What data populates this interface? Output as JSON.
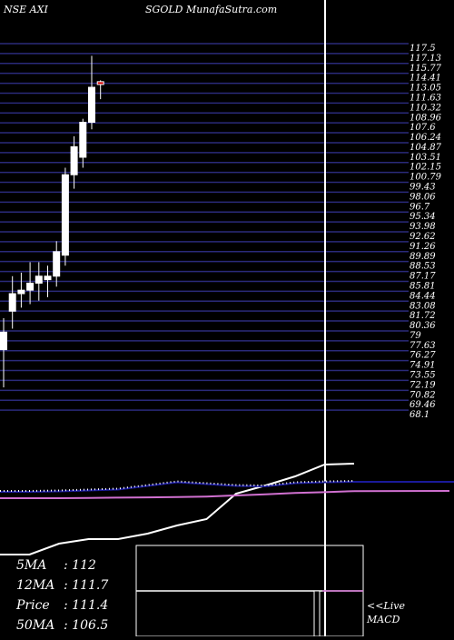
{
  "header": {
    "symbol_label": "NSE AXI",
    "source_label": "SGOLD MunafaSutra.com"
  },
  "colors": {
    "background": "#000000",
    "grid": "#2a2a7a",
    "candle_up": "#ffffff",
    "candle_down": "#d40000",
    "macd_line": "#ffffff",
    "signal_line": "#1a1a9a",
    "ma_line": "#d070d0",
    "text": "#ffffff"
  },
  "chart_data": [
    {
      "type": "candlestick",
      "title": "",
      "ylim": [
        63.7,
        117.5
      ],
      "y_tick_labels": [
        "117.5",
        "117.13",
        "115.77",
        "114.41",
        "113.05",
        "111.63",
        "110.32",
        "108.96",
        "107.6",
        "106.24",
        "104.87",
        "103.51",
        "102.15",
        "100.79",
        "99.43",
        "98.06",
        "96.7",
        "95.34",
        "93.98",
        "92.62",
        "91.26",
        "89.89",
        "88.53",
        "87.17",
        "85.81",
        "84.44",
        "83.08",
        "81.72",
        "80.36",
        "79",
        "77.63",
        "76.27",
        "74.91",
        "73.55",
        "72.19",
        "70.82",
        "69.46",
        "68.1"
      ],
      "candles": [
        {
          "open": 73.5,
          "high": 78.0,
          "low": 68.1,
          "close": 76.0
        },
        {
          "open": 79.0,
          "high": 84.0,
          "low": 76.5,
          "close": 81.5
        },
        {
          "open": 81.5,
          "high": 84.5,
          "low": 79.5,
          "close": 82.0
        },
        {
          "open": 82.0,
          "high": 86.0,
          "low": 80.0,
          "close": 83.0
        },
        {
          "open": 83.0,
          "high": 86.0,
          "low": 80.5,
          "close": 84.0
        },
        {
          "open": 83.5,
          "high": 85.5,
          "low": 81.0,
          "close": 84.0
        },
        {
          "open": 84.0,
          "high": 89.0,
          "low": 82.5,
          "close": 87.5
        },
        {
          "open": 87.0,
          "high": 99.5,
          "low": 85.5,
          "close": 98.5
        },
        {
          "open": 98.5,
          "high": 104.0,
          "low": 96.5,
          "close": 102.5
        },
        {
          "open": 101.0,
          "high": 106.5,
          "low": 99.5,
          "close": 106.0
        },
        {
          "open": 106.0,
          "high": 115.5,
          "low": 105.0,
          "close": 111.0
        },
        {
          "open": 111.8,
          "high": 112.0,
          "low": 109.3,
          "close": 111.4
        }
      ]
    },
    {
      "type": "line",
      "title": "",
      "series": [
        {
          "values": [
            -2.0,
            -2.0,
            -0.8,
            -0.3,
            -0.3,
            0.3,
            1.2,
            1.9,
            4.7,
            5.6,
            6.6,
            7.9,
            8.0
          ]
        },
        {
          "values": [
            -0.1,
            -0.1,
            -0.05,
            0.05,
            0.15,
            0.55,
            0.95,
            0.75,
            0.55,
            0.5,
            0.85,
            0.95,
            1.0
          ]
        },
        {
          "values": [
            0.0,
            0.0,
            0.0,
            0.05,
            0.1,
            0.15,
            0.2,
            0.3,
            0.5,
            0.7,
            0.95,
            1.1,
            1.3
          ]
        }
      ]
    }
  ],
  "indicators": {
    "rows": [
      {
        "label": "5MA",
        "value": "112"
      },
      {
        "label": "12MA",
        "value": "111.7"
      },
      {
        "label": "Price",
        "value": "111.4"
      },
      {
        "label": "50MA",
        "value": "106.5"
      }
    ],
    "live_label": "<<Live",
    "macd_label": "MACD"
  }
}
